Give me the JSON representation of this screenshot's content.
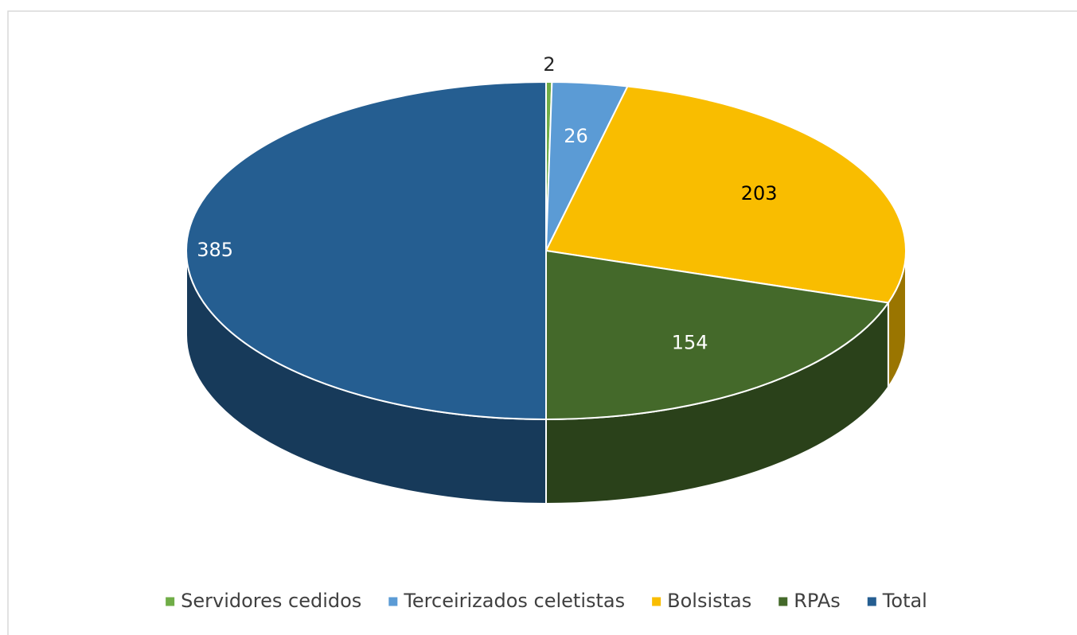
{
  "chart_data": {
    "type": "pie",
    "categories": [
      "Servidores cedidos",
      "Terceirizados celetistas",
      "Bolsistas",
      "RPAs",
      "Total"
    ],
    "values": [
      2,
      26,
      203,
      154,
      385
    ],
    "colors": [
      "#70ad47",
      "#5b9bd5",
      "#f9bd00",
      "#44692a",
      "#255e91"
    ],
    "legend": "bottom"
  }
}
